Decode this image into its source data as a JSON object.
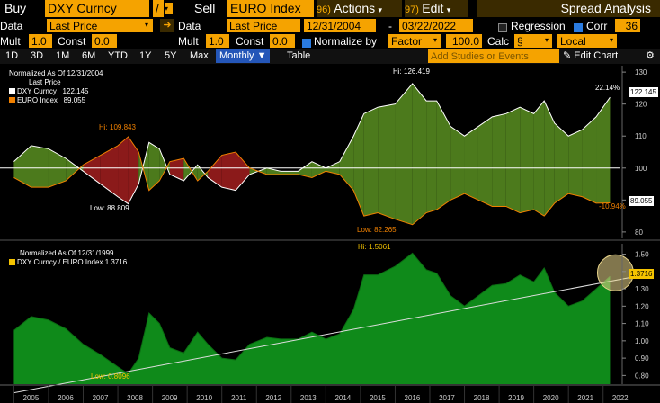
{
  "toolbar1": {
    "buy_label": "Buy",
    "security1": "DXY Curncy",
    "op": "/",
    "sell_label": "Sell",
    "security2": "EURO Index",
    "actions_num": "96)",
    "actions_label": "Actions",
    "edit_num": "97)",
    "edit_label": "Edit",
    "title": "Spread Analysis"
  },
  "toolbar2": {
    "data_label1": "Data",
    "data_value1": "Last Price",
    "data_label2": "Data",
    "data_value2": "Last Price",
    "start_date": "12/31/2004",
    "dash": "-",
    "end_date": "03/22/2022",
    "regression_label": "Regression",
    "corr_label": "Corr",
    "corr_value": "36"
  },
  "toolbar3": {
    "mult_label1": "Mult",
    "mult_value1": "1.0",
    "const_label1": "Const",
    "const_value1": "0.0",
    "mult_label2": "Mult",
    "mult_value2": "1.0",
    "const_label2": "Const",
    "const_value2": "0.0",
    "normalize_label": "Normalize by",
    "normalize_value": "Factor",
    "factor_value": "100.0",
    "calc_label": "Calc",
    "calc_value": "§",
    "local_value": "Local"
  },
  "tabs": {
    "items": [
      "1D",
      "3D",
      "1M",
      "6M",
      "YTD",
      "1Y",
      "5Y",
      "Max"
    ],
    "monthly": "Monthly ▼",
    "table": "Table",
    "add_studies_placeholder": "Add Studies or Events",
    "edit_chart": "Edit Chart"
  },
  "colors": {
    "accent": "#f5a300",
    "upper_fill_green": "#4c7a1c",
    "upper_fill_red": "#8b1a1a",
    "lower_fill": "#0f8a1a",
    "bg": "#000000"
  },
  "chart_data": [
    {
      "type": "area",
      "legend": {
        "title": "Normalized As Of 12/31/2004",
        "subtitle": "Last Price",
        "entries": [
          {
            "name": "DXY Curncy",
            "value": "122.145",
            "color": "#ffffff"
          },
          {
            "name": "EURO Index",
            "value": "89.055",
            "color": "#f08000"
          }
        ]
      },
      "x_ticks": [
        "2005",
        "2006",
        "2007",
        "2008",
        "2009",
        "2010",
        "2011",
        "2012",
        "2013",
        "2014",
        "2015",
        "2016",
        "2017",
        "2018",
        "2019",
        "2020",
        "2021",
        "2022"
      ],
      "y_ticks": [
        80,
        90,
        100,
        110,
        120,
        130
      ],
      "ylim": [
        78,
        132
      ],
      "baseline": 100,
      "series": [
        {
          "name": "DXY Curncy",
          "color": "#ffffff",
          "x": [
            2005.0,
            2005.5,
            2006.0,
            2006.5,
            2007.0,
            2007.5,
            2008.0,
            2008.3,
            2008.6,
            2008.9,
            2009.2,
            2009.5,
            2009.9,
            2010.3,
            2010.6,
            2011.0,
            2011.4,
            2011.8,
            2012.3,
            2012.7,
            2013.2,
            2013.6,
            2014.0,
            2014.4,
            2014.8,
            2015.1,
            2015.5,
            2016.0,
            2016.5,
            2016.9,
            2017.2,
            2017.6,
            2018.0,
            2018.4,
            2018.8,
            2019.2,
            2019.6,
            2020.0,
            2020.3,
            2020.6,
            2021.0,
            2021.4,
            2021.8,
            2022.2
          ],
          "y": [
            102,
            107,
            106,
            103,
            99,
            95,
            91,
            88.8,
            95,
            108,
            106,
            98,
            96,
            101,
            97,
            94,
            93,
            98,
            100,
            99,
            99,
            102,
            100,
            102,
            110,
            117,
            119,
            120,
            126.4,
            121,
            121,
            113,
            110,
            113,
            116,
            117,
            119,
            117,
            121,
            114,
            110,
            112,
            116,
            122.1
          ]
        },
        {
          "name": "EURO Index",
          "color": "#f08000",
          "x": [
            2005.0,
            2005.5,
            2006.0,
            2006.5,
            2007.0,
            2007.5,
            2008.0,
            2008.3,
            2008.6,
            2008.9,
            2009.2,
            2009.5,
            2009.9,
            2010.3,
            2010.6,
            2011.0,
            2011.4,
            2011.8,
            2012.3,
            2012.7,
            2013.2,
            2013.6,
            2014.0,
            2014.4,
            2014.8,
            2015.1,
            2015.5,
            2016.0,
            2016.5,
            2016.9,
            2017.2,
            2017.6,
            2018.0,
            2018.4,
            2018.8,
            2019.2,
            2019.6,
            2020.0,
            2020.3,
            2020.6,
            2021.0,
            2021.4,
            2021.8,
            2022.2
          ],
          "y": [
            97,
            94,
            94,
            96,
            101,
            104,
            107,
            109.8,
            105,
            93,
            96,
            102,
            103,
            96,
            99,
            104,
            105,
            100,
            98,
            98,
            98,
            97,
            99,
            98,
            93,
            85,
            86,
            84,
            82.3,
            86,
            87,
            90,
            92,
            90,
            88,
            88,
            86,
            87,
            85,
            89,
            92,
            91,
            89,
            89.1
          ]
        }
      ],
      "annotations": [
        {
          "text": "Hi: 126.419",
          "color": "#ffffff"
        },
        {
          "text": "Hi: 109.843",
          "color": "#f08000"
        },
        {
          "text": "Low: 88.809",
          "color": "#ffffff"
        },
        {
          "text": "Low: 82.265",
          "color": "#f08000"
        },
        {
          "text": "22.14%",
          "color": "#ffffff"
        },
        {
          "text": "-10.94%",
          "color": "#f08000"
        }
      ],
      "last_values": [
        {
          "text": "122.145",
          "color": "#ffffff"
        },
        {
          "text": "89.055",
          "color": "#f08000"
        }
      ]
    },
    {
      "type": "area",
      "legend": {
        "title": "Normalized As Of 12/31/1999",
        "entries": [
          {
            "name": "DXY Curncy / EURO Index",
            "value": "1.3716",
            "color": "#f5c400"
          }
        ]
      },
      "y_ticks": [
        0.8,
        0.9,
        1.0,
        1.1,
        1.2,
        1.3,
        1.4,
        1.5
      ],
      "ylim": [
        0.75,
        1.56
      ],
      "series": [
        {
          "name": "DXY Curncy / EURO Index",
          "color": "#0f8a1a",
          "x": [
            2005.0,
            2005.5,
            2006.0,
            2006.5,
            2007.0,
            2007.5,
            2008.0,
            2008.3,
            2008.6,
            2008.9,
            2009.2,
            2009.5,
            2009.9,
            2010.3,
            2010.6,
            2011.0,
            2011.4,
            2011.8,
            2012.3,
            2012.7,
            2013.2,
            2013.6,
            2014.0,
            2014.4,
            2014.8,
            2015.1,
            2015.5,
            2016.0,
            2016.5,
            2016.9,
            2017.2,
            2017.6,
            2018.0,
            2018.4,
            2018.8,
            2019.2,
            2019.6,
            2020.0,
            2020.3,
            2020.6,
            2021.0,
            2021.4,
            2021.8,
            2022.2
          ],
          "y": [
            1.06,
            1.14,
            1.12,
            1.07,
            0.98,
            0.92,
            0.85,
            0.81,
            0.9,
            1.16,
            1.1,
            0.96,
            0.93,
            1.05,
            0.98,
            0.9,
            0.89,
            0.98,
            1.02,
            1.01,
            1.01,
            1.05,
            1.01,
            1.04,
            1.18,
            1.38,
            1.38,
            1.43,
            1.506,
            1.41,
            1.39,
            1.26,
            1.2,
            1.26,
            1.32,
            1.33,
            1.38,
            1.34,
            1.42,
            1.28,
            1.2,
            1.23,
            1.3,
            1.3716
          ]
        }
      ],
      "trendline": {
        "start": [
          2005.0,
          0.7
        ],
        "end": [
          2022.3,
          1.37
        ]
      },
      "annotations": [
        {
          "text": "Hi: 1.5061",
          "color": "#f5c400"
        },
        {
          "text": "Low: 0.8096",
          "color": "#f5c400"
        }
      ],
      "last_values": [
        {
          "text": "1.3716",
          "color": "#f5c400"
        }
      ]
    }
  ]
}
